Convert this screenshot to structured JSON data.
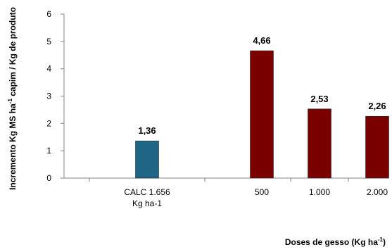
{
  "chart_data": {
    "type": "bar",
    "categories": [
      [
        "CALC 1.656",
        "Kg ha-1"
      ],
      [
        "500"
      ],
      [
        "1.000"
      ],
      [
        "2.000"
      ]
    ],
    "values": [
      1.36,
      4.66,
      2.53,
      2.26
    ],
    "value_labels": [
      "1,36",
      "4,66",
      "2,53",
      "2,26"
    ],
    "colors": [
      "#1f6585",
      "#7a0000",
      "#7a0000",
      "#7a0000"
    ],
    "ylim": [
      0,
      6
    ],
    "yticks": [
      0,
      1,
      2,
      3,
      4,
      5,
      6
    ],
    "ylabel": {
      "text_pre": "Incremento Kg  MS ha",
      "sup": "-1",
      "text_post": " capim / Kg de produto"
    },
    "xlabel": {
      "text_pre": "Doses de gesso (Kg ha",
      "sup": "-1",
      "text_post": ")"
    },
    "grid": false,
    "legend": "none"
  }
}
